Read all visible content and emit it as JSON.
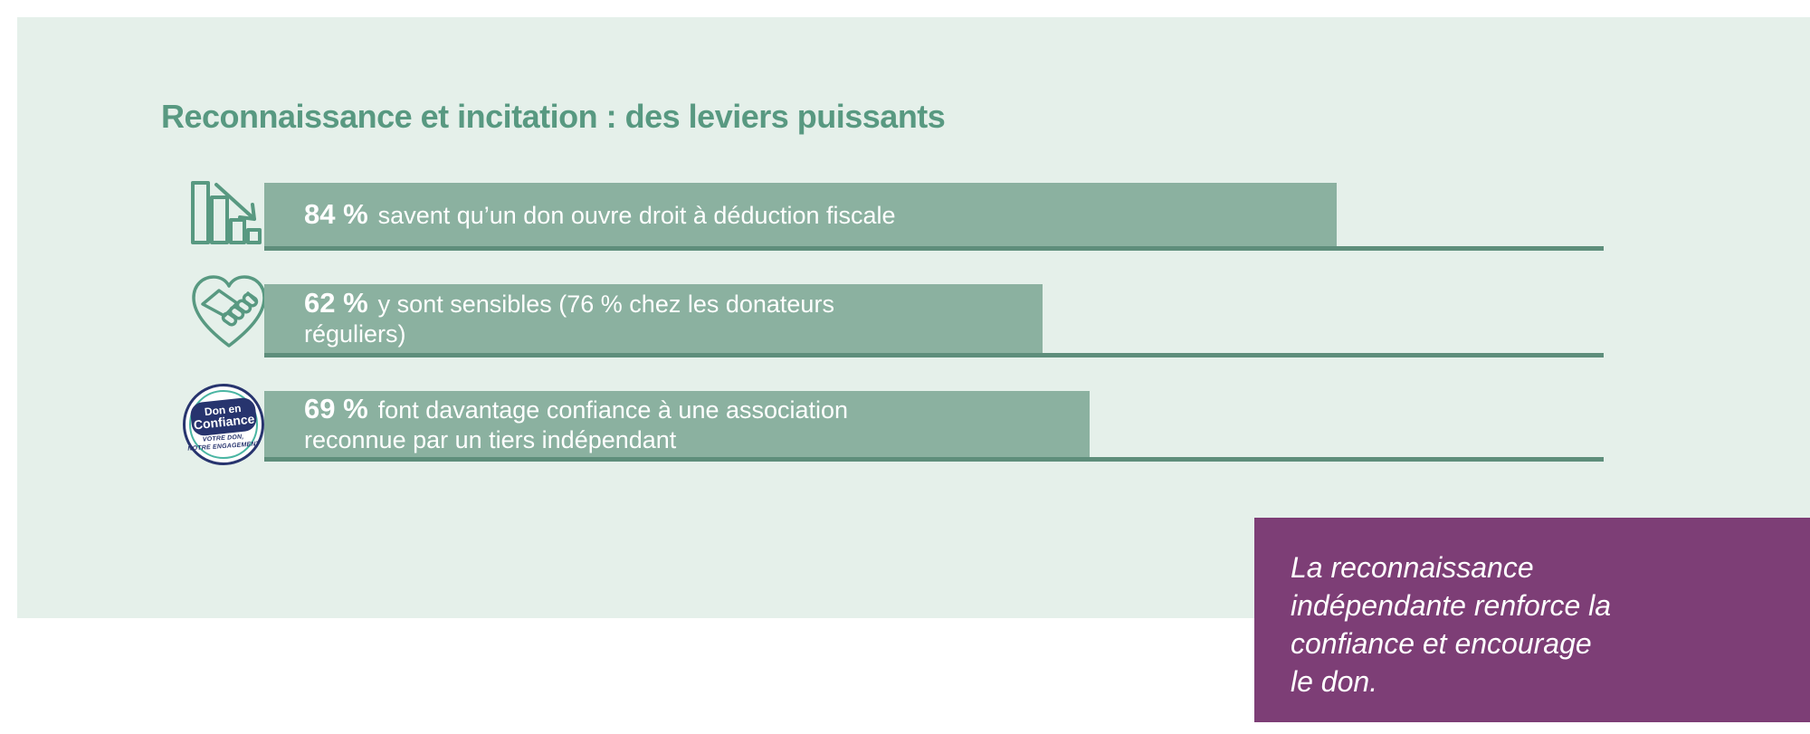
{
  "title": "Reconnaissance et incitation : des leviers puissants",
  "colors": {
    "page_bg": "#FFFFFF",
    "panel_bg": "#E5F0EA",
    "bar_fill": "#8BB1A0",
    "baseline": "#5E8E7B",
    "title_text": "#589981",
    "icon_stroke": "#589981",
    "bar_text": "#FFFFFF",
    "callout_bg": "#7D3E76",
    "callout_text": "#FFFFFF",
    "logo_navy": "#27346E",
    "logo_teal": "#49B5A2"
  },
  "chart_data": {
    "type": "bar",
    "orientation": "horizontal",
    "unit": "%",
    "title": "Reconnaissance et incitation : des leviers puissants",
    "values": [
      84,
      62,
      69
    ],
    "axis_note": "bars drawn over full-width baselines, no tick labels shown",
    "items": [
      {
        "value": 84,
        "value_label": "84 %",
        "text": "savent qu’un don ouvre droit à déduction fiscale",
        "text_line1": "savent qu’un don ouvre droit à déduction fiscale",
        "text_line2": "",
        "icon": "declining-bar-chart-icon",
        "bar_width_pct": 80.1
      },
      {
        "value": 62,
        "value_label": "62 %",
        "text": "y sont sensibles (76 % chez les donateurs réguliers)",
        "text_line1": "y sont sensibles (76 % chez les donateurs",
        "text_line2": "réguliers)",
        "icon": "heart-handshake-icon",
        "bar_width_pct": 58.1
      },
      {
        "value": 69,
        "value_label": "69 %",
        "text": "font davantage confiance à une association reconnue par un tiers indépendant",
        "text_line1": "font davantage confiance à une association",
        "text_line2": "reconnue par un tiers indépendant",
        "icon": "don-en-confiance-badge",
        "bar_width_pct": 61.6
      }
    ]
  },
  "callout": {
    "text": "La reconnaissance indépendante renforce la confiance et encourage le don.",
    "lines": [
      "La reconnaissance",
      "indépendante renforce la",
      "confiance et encourage",
      "le don."
    ]
  },
  "logo": {
    "line1": "Don en",
    "line2": "Confiance",
    "tagline1": "VOTRE DON,",
    "tagline2": "NOTRE ENGAGEMENT"
  }
}
